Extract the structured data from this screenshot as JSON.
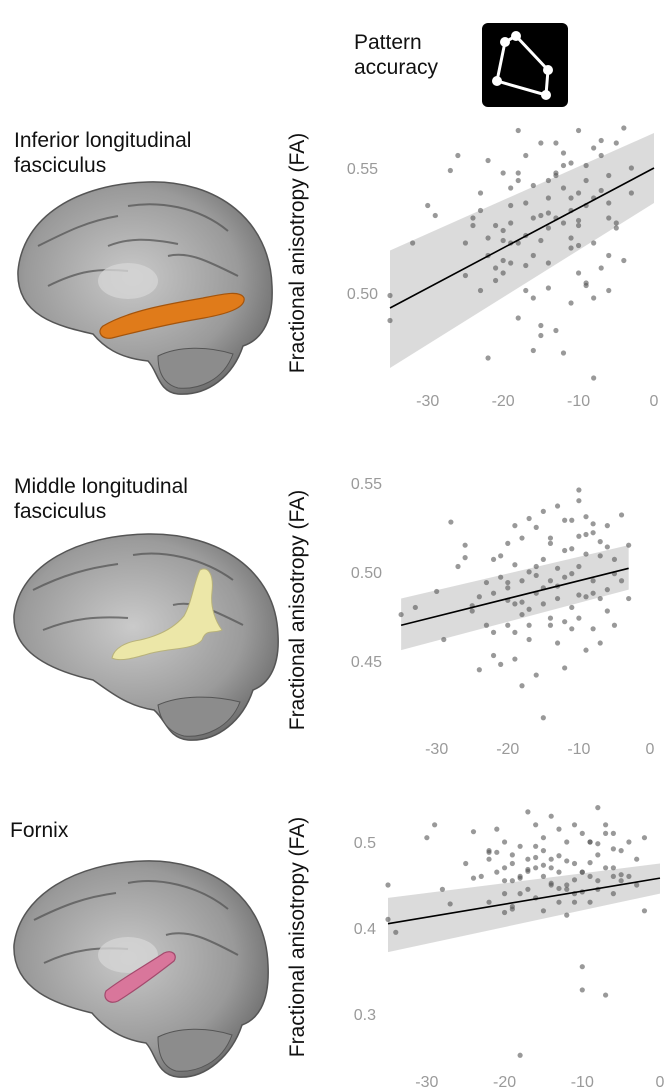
{
  "header": {
    "label_line1": "Pattern",
    "label_line2": "accuracy",
    "icon": "constellation-icon"
  },
  "panels": [
    {
      "title_line1": "Inferior longitudinal",
      "title_line2": "fasciculus",
      "tract_color": "#e07b1a",
      "brain_icon": "brain-sagittal-ilf-icon"
    },
    {
      "title_line1": "Middle longitudinal",
      "title_line2": "fasciculus",
      "tract_color": "#ece7a8",
      "brain_icon": "brain-sagittal-mdlf-icon"
    },
    {
      "title_line1": "Fornix",
      "title_line2": "",
      "tract_color": "#d9769b",
      "brain_icon": "brain-sagittal-fornix-icon"
    }
  ],
  "chart_data": [
    {
      "type": "scatter",
      "title": "",
      "xlabel": "",
      "ylabel": "Fractional anisotropy (FA)",
      "xlim": [
        -35,
        0
      ],
      "ylim": [
        0.47,
        0.57
      ],
      "xticks": [
        -30,
        -20,
        -10,
        0
      ],
      "yticks": [
        0.5,
        0.55
      ],
      "xticklabels": [
        "-30",
        "-20",
        "-10",
        "0"
      ],
      "yticklabels": [
        "0.50",
        "0.55"
      ],
      "regression": {
        "x": [
          -35,
          0
        ],
        "y": [
          0.494,
          0.55
        ]
      },
      "ci_band": {
        "x": [
          -35,
          0
        ],
        "lower": [
          0.47,
          0.536
        ],
        "upper": [
          0.517,
          0.564
        ]
      },
      "points": {
        "x": [
          -35,
          -35,
          -32,
          -30,
          -29,
          -27,
          -26,
          -25,
          -24,
          -23,
          -23,
          -22,
          -22,
          -21,
          -21,
          -20,
          -20,
          -20,
          -19,
          -19,
          -19,
          -18,
          -18,
          -18,
          -17,
          -17,
          -17,
          -16,
          -16,
          -16,
          -15,
          -15,
          -15,
          -14,
          -14,
          -14,
          -14,
          -13,
          -13,
          -13,
          -12,
          -12,
          -12,
          -11,
          -11,
          -11,
          -11,
          -10,
          -10,
          -10,
          -10,
          -9,
          -9,
          -9,
          -8,
          -8,
          -8,
          -7,
          -7,
          -7,
          -6,
          -6,
          -6,
          -5,
          -5,
          -4,
          -4,
          -3,
          -3,
          -22,
          -20,
          -18,
          -16,
          -14,
          -12,
          -10,
          -8,
          -6,
          -13,
          -11,
          -9,
          -19,
          -17,
          -15,
          -23,
          -21,
          -12,
          -10,
          -7,
          -5,
          -14,
          -16,
          -18,
          -24,
          -20,
          -8,
          -6,
          -9,
          -11,
          -13,
          -15,
          -17,
          -25,
          -22,
          -19
        ],
        "y": [
          0.499,
          0.489,
          0.52,
          0.535,
          0.531,
          0.549,
          0.555,
          0.52,
          0.53,
          0.54,
          0.501,
          0.522,
          0.515,
          0.527,
          0.505,
          0.548,
          0.525,
          0.508,
          0.535,
          0.512,
          0.528,
          0.565,
          0.545,
          0.52,
          0.555,
          0.536,
          0.511,
          0.53,
          0.498,
          0.543,
          0.521,
          0.483,
          0.56,
          0.512,
          0.538,
          0.526,
          0.502,
          0.548,
          0.485,
          0.53,
          0.542,
          0.528,
          0.476,
          0.552,
          0.533,
          0.522,
          0.496,
          0.565,
          0.54,
          0.527,
          0.508,
          0.551,
          0.545,
          0.503,
          0.538,
          0.52,
          0.466,
          0.555,
          0.541,
          0.51,
          0.547,
          0.53,
          0.515,
          0.56,
          0.526,
          0.566,
          0.513,
          0.55,
          0.54,
          0.474,
          0.521,
          0.548,
          0.515,
          0.532,
          0.551,
          0.529,
          0.498,
          0.536,
          0.56,
          0.518,
          0.504,
          0.542,
          0.523,
          0.487,
          0.533,
          0.51,
          0.556,
          0.519,
          0.561,
          0.528,
          0.545,
          0.477,
          0.49,
          0.527,
          0.513,
          0.558,
          0.501,
          0.535,
          0.538,
          0.547,
          0.531,
          0.501,
          0.507,
          0.553,
          0.52
        ]
      }
    },
    {
      "type": "scatter",
      "title": "",
      "xlabel": "",
      "ylabel": "Fractional anisotropy (FA)",
      "xlim": [
        -36,
        0
      ],
      "ylim": [
        0.41,
        0.555
      ],
      "xticks": [
        -30,
        -20,
        -10,
        0
      ],
      "yticks": [
        0.45,
        0.5,
        0.55
      ],
      "xticklabels": [
        "-30",
        "-20",
        "-10",
        "0"
      ],
      "yticklabels": [
        "0.45",
        "0.50",
        "0.55"
      ],
      "regression": {
        "x": [
          -35,
          -3
        ],
        "y": [
          0.47,
          0.502
        ]
      },
      "ci_band": {
        "x": [
          -35,
          -3
        ],
        "lower": [
          0.456,
          0.49
        ],
        "upper": [
          0.485,
          0.515
        ]
      },
      "points": {
        "x": [
          -35,
          -33,
          -30,
          -28,
          -27,
          -26,
          -25,
          -24,
          -23,
          -23,
          -22,
          -22,
          -21,
          -21,
          -20,
          -20,
          -20,
          -19,
          -19,
          -19,
          -18,
          -18,
          -18,
          -17,
          -17,
          -17,
          -16,
          -16,
          -16,
          -15,
          -15,
          -15,
          -14,
          -14,
          -14,
          -13,
          -13,
          -13,
          -12,
          -12,
          -12,
          -11,
          -11,
          -11,
          -10,
          -10,
          -10,
          -10,
          -9,
          -9,
          -9,
          -8,
          -8,
          -8,
          -7,
          -7,
          -7,
          -6,
          -6,
          -5,
          -5,
          -4,
          -4,
          -3,
          -3,
          -22,
          -20,
          -18,
          -16,
          -14,
          -12,
          -10,
          -8,
          -6,
          -13,
          -11,
          -9,
          -19,
          -17,
          -15,
          -21,
          -12,
          -10,
          -7,
          -5,
          -14,
          -16,
          -24,
          -20,
          -8,
          -6,
          -9,
          -11,
          -13,
          -15,
          -17,
          -25,
          -22,
          -19,
          -29,
          -26,
          -18
        ],
        "y": [
          0.476,
          0.48,
          0.489,
          0.528,
          0.503,
          0.515,
          0.478,
          0.486,
          0.494,
          0.47,
          0.488,
          0.466,
          0.509,
          0.497,
          0.516,
          0.491,
          0.484,
          0.504,
          0.482,
          0.451,
          0.519,
          0.495,
          0.476,
          0.53,
          0.5,
          0.47,
          0.525,
          0.488,
          0.442,
          0.507,
          0.482,
          0.418,
          0.519,
          0.495,
          0.47,
          0.537,
          0.485,
          0.46,
          0.512,
          0.497,
          0.472,
          0.529,
          0.499,
          0.48,
          0.546,
          0.52,
          0.503,
          0.474,
          0.531,
          0.51,
          0.486,
          0.522,
          0.495,
          0.468,
          0.517,
          0.485,
          0.46,
          0.526,
          0.49,
          0.507,
          0.47,
          0.532,
          0.495,
          0.515,
          0.485,
          0.453,
          0.47,
          0.436,
          0.498,
          0.516,
          0.446,
          0.54,
          0.527,
          0.478,
          0.492,
          0.513,
          0.456,
          0.526,
          0.462,
          0.491,
          0.448,
          0.529,
          0.487,
          0.509,
          0.499,
          0.474,
          0.503,
          0.445,
          0.494,
          0.488,
          0.514,
          0.521,
          0.468,
          0.502,
          0.534,
          0.479,
          0.481,
          0.507,
          0.466,
          0.462,
          0.508,
          0.483
        ]
      }
    },
    {
      "type": "scatter",
      "title": "",
      "xlabel": "",
      "ylabel": "Fractional anisotropy (FA)",
      "xlim": [
        -35,
        0
      ],
      "ylim": [
        0.25,
        0.55
      ],
      "xticks": [
        -30,
        -20,
        -10,
        0
      ],
      "yticks": [
        0.3,
        0.4,
        0.5
      ],
      "xticklabels": [
        "-30",
        "-20",
        "-10",
        "0"
      ],
      "yticklabels": [
        "0.3",
        "0.4",
        "0.5"
      ],
      "regression": {
        "x": [
          -35,
          0
        ],
        "y": [
          0.405,
          0.458
        ]
      },
      "ci_band": {
        "x": [
          -35,
          0
        ],
        "lower": [
          0.372,
          0.44
        ],
        "upper": [
          0.435,
          0.475
        ]
      },
      "points": {
        "x": [
          -35,
          -35,
          -34,
          -30,
          -29,
          -28,
          -27,
          -25,
          -24,
          -23,
          -22,
          -22,
          -21,
          -21,
          -20,
          -20,
          -20,
          -19,
          -19,
          -19,
          -18,
          -18,
          -18,
          -17,
          -17,
          -17,
          -16,
          -16,
          -16,
          -15,
          -15,
          -15,
          -14,
          -14,
          -14,
          -13,
          -13,
          -13,
          -12,
          -12,
          -12,
          -11,
          -11,
          -11,
          -10,
          -10,
          -10,
          -10,
          -9,
          -9,
          -9,
          -8,
          -8,
          -8,
          -7,
          -7,
          -7,
          -6,
          -6,
          -6,
          -5,
          -5,
          -4,
          -4,
          -3,
          -3,
          -2,
          -2,
          -22,
          -20,
          -18,
          -16,
          -14,
          -12,
          -10,
          -8,
          -6,
          -13,
          -11,
          -9,
          -19,
          -17,
          -15,
          -21,
          -12,
          -10,
          -7,
          -5,
          -14,
          -16,
          -18,
          -20,
          -8,
          -6,
          -9,
          -11,
          -13,
          -15,
          -17,
          -22,
          -19,
          -24
        ],
        "y": [
          0.45,
          0.41,
          0.395,
          0.505,
          0.52,
          0.445,
          0.428,
          0.475,
          0.512,
          0.46,
          0.49,
          0.43,
          0.515,
          0.465,
          0.5,
          0.47,
          0.44,
          0.485,
          0.455,
          0.425,
          0.495,
          0.46,
          0.252,
          0.535,
          0.48,
          0.445,
          0.52,
          0.47,
          0.435,
          0.505,
          0.46,
          0.42,
          0.53,
          0.48,
          0.45,
          0.515,
          0.465,
          0.43,
          0.5,
          0.45,
          0.415,
          0.52,
          0.475,
          0.44,
          0.51,
          0.465,
          0.355,
          0.328,
          0.5,
          0.46,
          0.43,
          0.54,
          0.485,
          0.445,
          0.52,
          0.47,
          0.322,
          0.51,
          0.46,
          0.44,
          0.49,
          0.455,
          0.5,
          0.46,
          0.48,
          0.45,
          0.42,
          0.505,
          0.48,
          0.455,
          0.44,
          0.495,
          0.47,
          0.445,
          0.465,
          0.455,
          0.47,
          0.484,
          0.43,
          0.5,
          0.475,
          0.468,
          0.49,
          0.488,
          0.478,
          0.442,
          0.51,
          0.462,
          0.452,
          0.482,
          0.458,
          0.418,
          0.498,
          0.492,
          0.476,
          0.456,
          0.446,
          0.473,
          0.466,
          0.488,
          0.422,
          0.458
        ]
      }
    }
  ]
}
